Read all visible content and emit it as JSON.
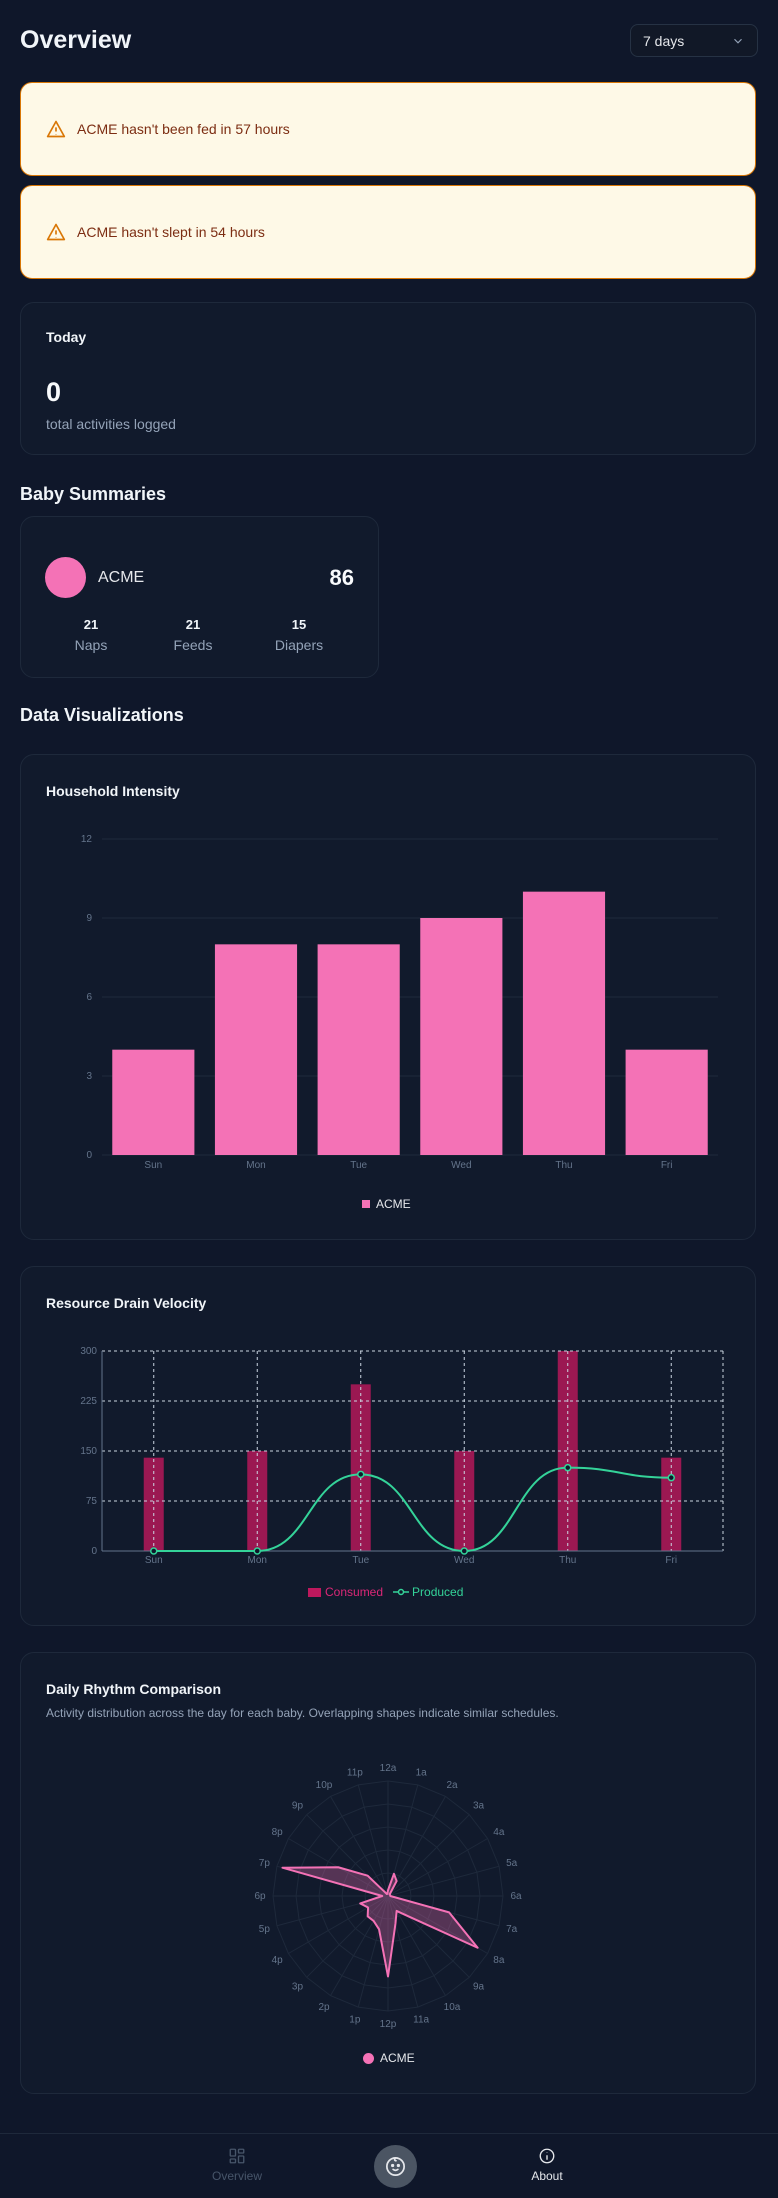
{
  "header": {
    "title": "Overview",
    "range": "7 days"
  },
  "alerts": [
    {
      "text": "ACME hasn't been fed in 57 hours"
    },
    {
      "text": "ACME hasn't slept in 54 hours"
    }
  ],
  "today": {
    "title": "Today",
    "value": "0",
    "label": "total activities logged"
  },
  "summaries": {
    "title": "Baby Summaries",
    "baby": {
      "name": "ACME",
      "score": "86",
      "avatar_color": "#f472b6",
      "stats": [
        {
          "value": "21",
          "label": "Naps"
        },
        {
          "value": "21",
          "label": "Feeds"
        },
        {
          "value": "15",
          "label": "Diapers"
        }
      ]
    }
  },
  "viz_title": "Data Visualizations",
  "chart_data": [
    {
      "type": "bar",
      "title": "Household Intensity",
      "categories": [
        "Sun",
        "Mon",
        "Tue",
        "Wed",
        "Thu",
        "Fri"
      ],
      "series": [
        {
          "name": "ACME",
          "values": [
            4,
            8,
            8,
            9,
            10,
            4
          ],
          "color": "#f472b6"
        }
      ],
      "ylim": [
        0,
        12
      ],
      "yticks": [
        0,
        3,
        6,
        9,
        12
      ],
      "legend": "bottom"
    },
    {
      "type": "bar+line",
      "title": "Resource Drain Velocity",
      "categories": [
        "Sun",
        "Mon",
        "Tue",
        "Wed",
        "Thu",
        "Fri"
      ],
      "series": [
        {
          "name": "Consumed",
          "type": "bar",
          "values": [
            140,
            150,
            250,
            150,
            300,
            140
          ],
          "color": "#be185d"
        },
        {
          "name": "Produced",
          "type": "line",
          "values": [
            0,
            0,
            115,
            0,
            125,
            110
          ],
          "color": "#34d399"
        }
      ],
      "ylim": [
        0,
        300
      ],
      "yticks": [
        0,
        75,
        150,
        225,
        300
      ],
      "grid": true,
      "legend": "bottom"
    },
    {
      "type": "radar",
      "title": "Daily Rhythm Comparison",
      "description": "Activity distribution across the day for each baby. Overlapping shapes indicate similar schedules.",
      "axes": [
        "12a",
        "1a",
        "2a",
        "3a",
        "4a",
        "5a",
        "6a",
        "7a",
        "8a",
        "9a",
        "10a",
        "11a",
        "12p",
        "1p",
        "2p",
        "3p",
        "4p",
        "5p",
        "6p",
        "7p",
        "8p",
        "9p",
        "10p",
        "11p"
      ],
      "series": [
        {
          "name": "ACME",
          "values": [
            0.05,
            0.2,
            0.15,
            0.02,
            0.02,
            0.02,
            0.02,
            0.55,
            0.9,
            0.25,
            0.15,
            0.25,
            0.7,
            0.3,
            0.25,
            0.25,
            0.2,
            0.25,
            0.05,
            0.95,
            0.5,
            0.25,
            0.02,
            0.02
          ],
          "color": "#f472b6"
        }
      ],
      "rmax": 1,
      "legend": "bottom"
    }
  ],
  "nav": {
    "overview": "Overview",
    "about": "About"
  },
  "colors": {
    "background": "#0f172a",
    "card": "#111a2c",
    "accent": "#f472b6",
    "alert_bg": "#fef9e7",
    "alert_border": "#d97706"
  }
}
